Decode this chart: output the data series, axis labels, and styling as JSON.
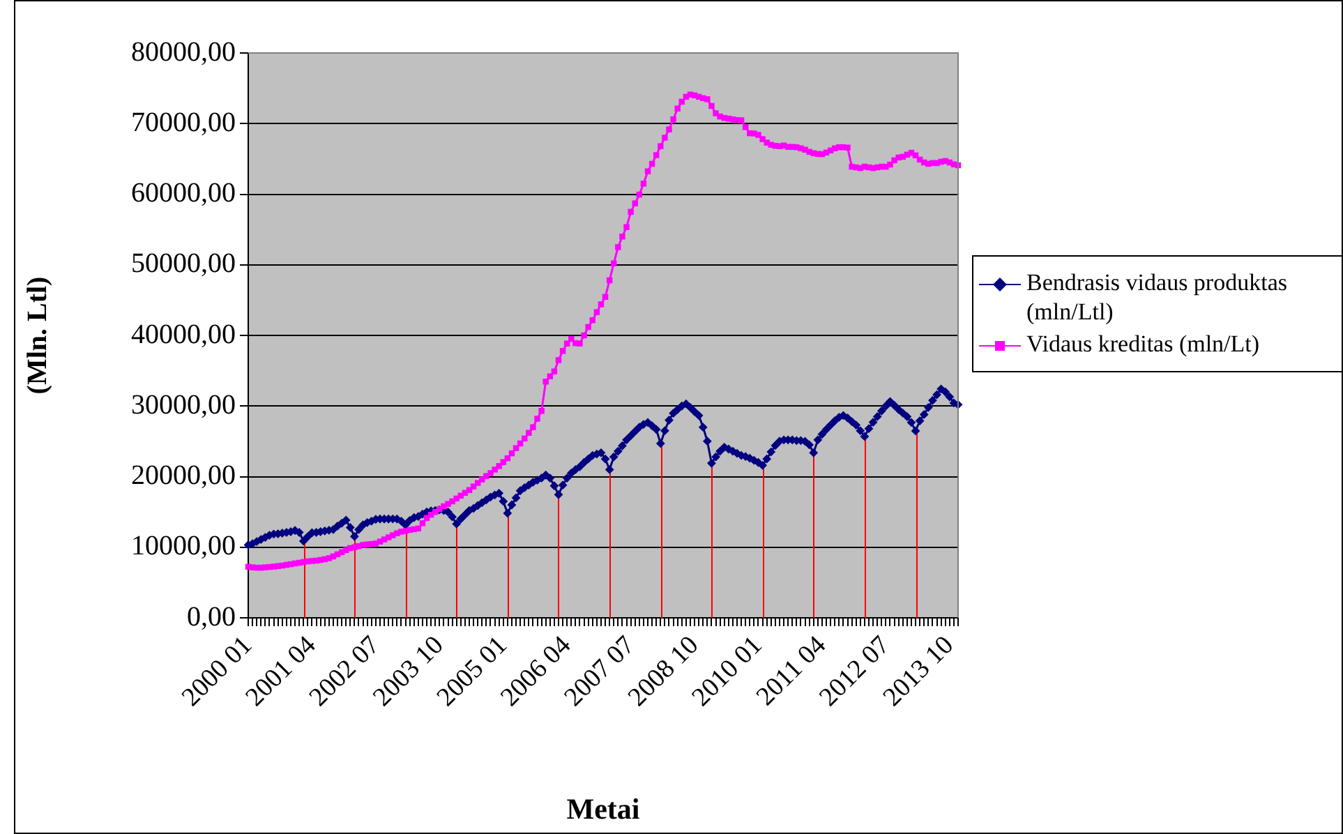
{
  "chart_data": {
    "type": "line",
    "ylabel": "(Mln. Ltl)",
    "xlabel": "Metai",
    "legend": "right",
    "grid": "y",
    "ylim": [
      0,
      80000
    ],
    "yticks": [
      {
        "value": 0,
        "label": "0,00"
      },
      {
        "value": 10000,
        "label": "10000,00"
      },
      {
        "value": 20000,
        "label": "20000,00"
      },
      {
        "value": 30000,
        "label": "30000,00"
      },
      {
        "value": 40000,
        "label": "40000,00"
      },
      {
        "value": 50000,
        "label": "50000,00"
      },
      {
        "value": 60000,
        "label": "60000,00"
      },
      {
        "value": 70000,
        "label": "70000,00"
      },
      {
        "value": 80000,
        "label": "80000,00"
      }
    ],
    "categories": [
      "2000 01",
      null,
      null,
      null,
      null,
      null,
      null,
      null,
      null,
      null,
      null,
      null,
      null,
      null,
      null,
      "2001 04",
      null,
      null,
      null,
      null,
      null,
      null,
      null,
      null,
      null,
      null,
      null,
      null,
      null,
      null,
      "2002 07",
      null,
      null,
      null,
      null,
      null,
      null,
      null,
      null,
      null,
      null,
      null,
      null,
      null,
      null,
      "2003 10",
      null,
      null,
      null,
      null,
      null,
      null,
      null,
      null,
      null,
      null,
      null,
      null,
      null,
      null,
      "2005 01",
      null,
      null,
      null,
      null,
      null,
      null,
      null,
      null,
      null,
      null,
      null,
      null,
      null,
      null,
      "2006 04",
      null,
      null,
      null,
      null,
      null,
      null,
      null,
      null,
      null,
      null,
      null,
      null,
      null,
      null,
      "2007 07",
      null,
      null,
      null,
      null,
      null,
      null,
      null,
      null,
      null,
      null,
      null,
      null,
      null,
      null,
      "2008 10",
      null,
      null,
      null,
      null,
      null,
      null,
      null,
      null,
      null,
      null,
      null,
      null,
      null,
      null,
      "2010 01",
      null,
      null,
      null,
      null,
      null,
      null,
      null,
      null,
      null,
      null,
      null,
      null,
      null,
      null,
      "2011 04",
      null,
      null,
      null,
      null,
      null,
      null,
      null,
      null,
      null,
      null,
      null,
      null,
      null,
      null,
      "2012 07",
      null,
      null,
      null,
      null,
      null,
      null,
      null,
      null,
      null,
      null,
      null,
      null,
      null,
      null,
      "2013 10",
      null,
      null
    ],
    "series": [
      {
        "name": "Bendrasis vidaus produktas (mln/Ltl)",
        "color": "#000080",
        "marker": "diamond",
        "values": [
          10330,
          10500,
          10800,
          11100,
          11400,
          11700,
          11860,
          11900,
          12000,
          12100,
          12200,
          12370,
          12100,
          10870,
          11500,
          12050,
          12100,
          12200,
          12300,
          12400,
          12510,
          13000,
          13400,
          13830,
          12800,
          11520,
          12500,
          13160,
          13500,
          13700,
          13950,
          14000,
          14000,
          14000,
          14010,
          14000,
          13700,
          13160,
          13800,
          14200,
          14350,
          14700,
          15000,
          15140,
          15200,
          15300,
          15200,
          15000,
          14300,
          13300,
          14000,
          14600,
          15200,
          15500,
          15900,
          16300,
          16700,
          17100,
          17400,
          17650,
          16500,
          14820,
          16000,
          17000,
          18000,
          18440,
          18800,
          19200,
          19500,
          19800,
          20220,
          19800,
          18700,
          17450,
          18800,
          19800,
          20500,
          21000,
          21400,
          22000,
          22500,
          23000,
          23200,
          23380,
          22500,
          21000,
          22800,
          23600,
          24370,
          25200,
          25800,
          26400,
          27000,
          27400,
          27670,
          27200,
          26680,
          24700,
          26500,
          28000,
          28970,
          29500,
          30000,
          30300,
          29800,
          29200,
          28660,
          27000,
          25020,
          21900,
          22800,
          23600,
          24170,
          23900,
          23600,
          23300,
          23000,
          22850,
          22600,
          22300,
          22000,
          21600,
          22500,
          23500,
          24400,
          25020,
          25200,
          25200,
          25200,
          25100,
          25100,
          25000,
          24500,
          23380,
          25200,
          26000,
          26680,
          27300,
          27900,
          28400,
          28660,
          28300,
          27800,
          27300,
          26500,
          25690,
          26800,
          27700,
          28500,
          29300,
          30000,
          30630,
          30100,
          29500,
          29000,
          28500,
          27670,
          26480,
          27900,
          28800,
          29800,
          30800,
          31600,
          32410,
          32000,
          31300,
          30430,
          30200
        ],
        "errors": [
          null,
          null,
          null,
          null,
          null,
          null,
          null,
          null,
          null,
          null,
          null,
          null,
          null,
          [
            10870,
            0
          ],
          null,
          null,
          null,
          null,
          null,
          null,
          null,
          null,
          null,
          null,
          null,
          [
            11520,
            0
          ],
          null,
          null,
          null,
          null,
          null,
          null,
          null,
          null,
          null,
          null,
          null,
          [
            13160,
            0
          ],
          null,
          null,
          null,
          null,
          null,
          null,
          null,
          null,
          null,
          null,
          null,
          [
            13300,
            0
          ],
          null,
          null,
          null,
          null,
          null,
          null,
          null,
          null,
          null,
          null,
          null,
          [
            14820,
            0
          ],
          null,
          null,
          null,
          null,
          null,
          null,
          null,
          null,
          null,
          null,
          null,
          [
            17450,
            0
          ],
          null,
          null,
          null,
          null,
          null,
          null,
          null,
          null,
          null,
          null,
          null,
          [
            21000,
            0
          ],
          null,
          null,
          null,
          null,
          null,
          null,
          null,
          null,
          null,
          null,
          null,
          [
            24700,
            0
          ],
          null,
          null,
          null,
          null,
          null,
          null,
          null,
          null,
          null,
          null,
          null,
          [
            21900,
            0
          ],
          null,
          null,
          null,
          null,
          null,
          null,
          null,
          null,
          null,
          null,
          null,
          [
            21600,
            0
          ],
          null,
          null,
          null,
          null,
          null,
          null,
          null,
          null,
          null,
          null,
          null,
          [
            23380,
            0
          ],
          null,
          null,
          null,
          null,
          null,
          null,
          null,
          null,
          null,
          null,
          null,
          [
            25690,
            0
          ],
          null,
          null,
          null,
          null,
          null,
          null,
          null,
          null,
          null,
          null,
          null,
          [
            26480,
            0
          ],
          null,
          null,
          null,
          null,
          null,
          null,
          null,
          null,
          null,
          null
        ]
      },
      {
        "name": "Vidaus kreditas (mln/Lt)",
        "color": "#ff00ff",
        "marker": "square",
        "values": [
          7230,
          7150,
          7100,
          7100,
          7150,
          7200,
          7250,
          7330,
          7400,
          7500,
          7600,
          7700,
          7800,
          7900,
          8000,
          8050,
          8100,
          8200,
          8300,
          8450,
          8700,
          9000,
          9300,
          9600,
          9880,
          10000,
          10150,
          10330,
          10400,
          10450,
          10530,
          10800,
          11100,
          11400,
          11700,
          11980,
          12200,
          12300,
          12450,
          12550,
          12650,
          13400,
          14150,
          14600,
          15000,
          15400,
          15800,
          16130,
          16500,
          16900,
          17300,
          17700,
          18100,
          18600,
          19100,
          19600,
          20080,
          20500,
          21000,
          21500,
          22060,
          22600,
          23300,
          24030,
          24700,
          25400,
          26200,
          27000,
          28200,
          29310,
          33460,
          34200,
          34900,
          36500,
          37800,
          38850,
          39500,
          38900,
          38850,
          40000,
          41200,
          42150,
          43300,
          44400,
          45450,
          47800,
          50200,
          52500,
          54000,
          55340,
          57500,
          58700,
          59940,
          61500,
          63240,
          64300,
          65530,
          66800,
          68000,
          69170,
          70600,
          72130,
          73100,
          73800,
          74110,
          74000,
          73800,
          73600,
          73450,
          72500,
          71460,
          71000,
          70800,
          70700,
          70600,
          70500,
          70470,
          69500,
          68630,
          68600,
          68400,
          67800,
          67300,
          67000,
          66850,
          66800,
          66900,
          66700,
          66700,
          66660,
          66500,
          66300,
          66000,
          65800,
          65700,
          65670,
          65900,
          66200,
          66500,
          66660,
          66660,
          66600,
          63890,
          63800,
          63700,
          63900,
          63800,
          63700,
          63800,
          63900,
          63890,
          64200,
          64800,
          65200,
          65300,
          65600,
          65870,
          65500,
          64900,
          64500,
          64300,
          64420,
          64400,
          64600,
          64700,
          64500,
          64220,
          64100
        ]
      }
    ]
  }
}
